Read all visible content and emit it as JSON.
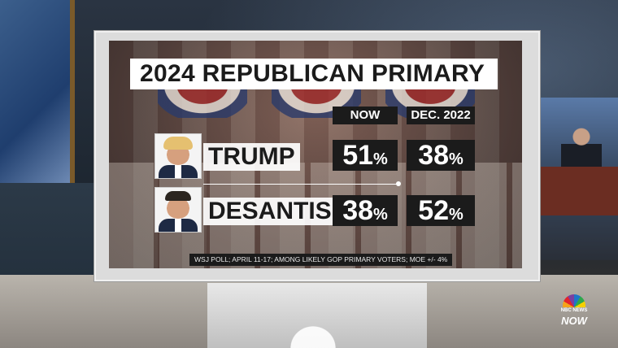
{
  "graphic": {
    "title": "2024 REPUBLICAN PRIMARY",
    "columns": [
      "NOW",
      "DEC. 2022"
    ],
    "candidates": [
      {
        "name": "TRUMP",
        "now": "51",
        "dec_2022": "38"
      },
      {
        "name": "DESANTIS",
        "now": "38",
        "dec_2022": "52"
      }
    ],
    "percent_sign": "%",
    "source": "WSJ POLL; APRIL 11-17; AMONG LIKELY GOP PRIMARY VOTERS; MOE +/- 4%"
  },
  "network_logo": {
    "small_text": "NBC NEWS",
    "big_text": "NOW"
  },
  "colors": {
    "panel_dark": "#1b1b1b",
    "panel_light": "#ffffff"
  }
}
